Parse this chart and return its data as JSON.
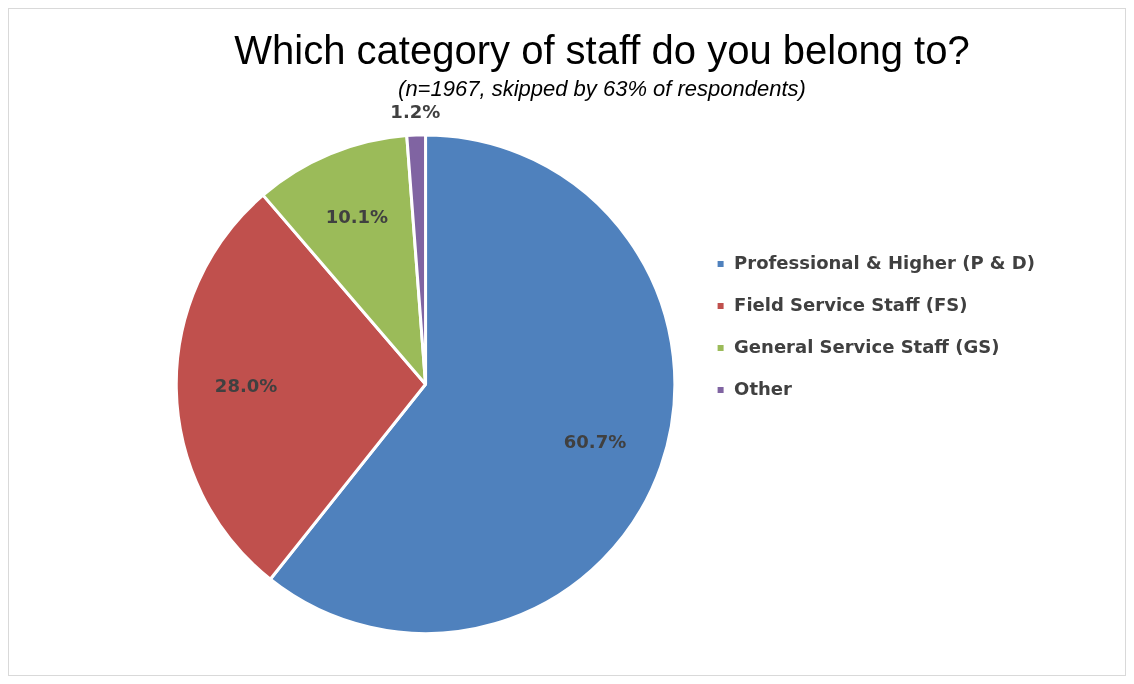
{
  "chart_data": {
    "type": "pie",
    "title": "Which category of staff do you belong to?",
    "subtitle": "(n=1967, skipped by 63% of respondents)",
    "categories": [
      "Professional & Higher (P & D)",
      "Field Service Staff (FS)",
      "General Service Staff (GS)",
      "Other"
    ],
    "values": [
      60.7,
      28.0,
      10.1,
      1.2
    ],
    "colors": [
      "#4f81bd",
      "#c0504d",
      "#9bbb59",
      "#8064a2"
    ],
    "value_labels": [
      "60.7%",
      "28.0%",
      "10.1%",
      "1.2%"
    ],
    "legend": "right"
  }
}
